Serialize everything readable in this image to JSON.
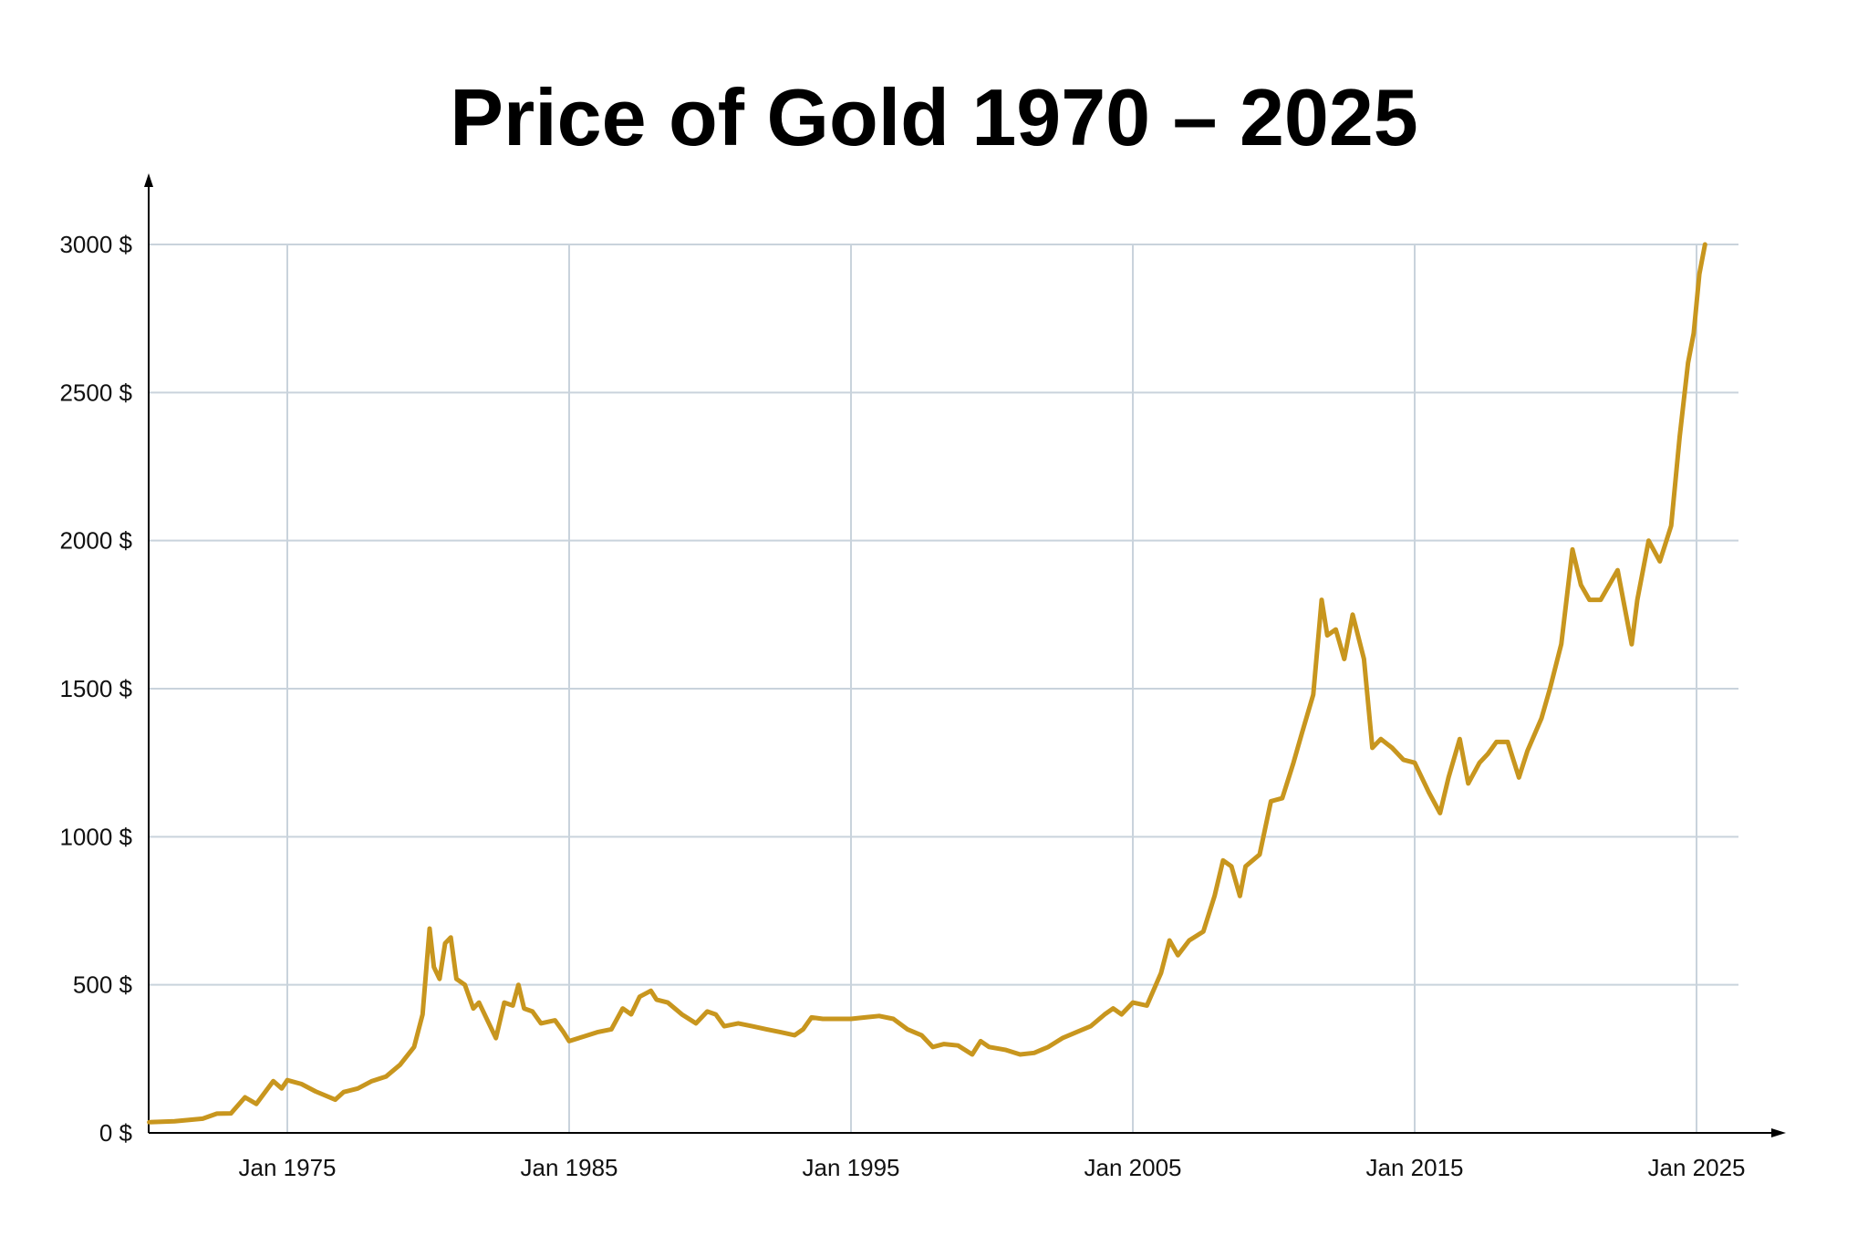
{
  "chart_data": {
    "type": "line",
    "title": "Price of Gold 1970 – 2025",
    "xlabel": "",
    "ylabel": "",
    "xlim": [
      1970.08,
      2027.5
    ],
    "ylim": [
      0,
      3200
    ],
    "grid": true,
    "line_color": "#C8961E",
    "grid_color": "#C9D3DC",
    "x_ticks": [
      {
        "value": 1975,
        "label": "Jan 1975"
      },
      {
        "value": 1985,
        "label": "Jan 1985"
      },
      {
        "value": 1995,
        "label": "Jan 1995"
      },
      {
        "value": 2005,
        "label": "Jan 2005"
      },
      {
        "value": 2015,
        "label": "Jan 2015"
      },
      {
        "value": 2025,
        "label": "Jan 2025"
      }
    ],
    "y_ticks": [
      {
        "value": 0,
        "label": "0 $"
      },
      {
        "value": 500,
        "label": "500 $"
      },
      {
        "value": 1000,
        "label": "1000 $"
      },
      {
        "value": 1500,
        "label": "1500 $"
      },
      {
        "value": 2000,
        "label": "2000 $"
      },
      {
        "value": 2500,
        "label": "2500 $"
      },
      {
        "value": 3000,
        "label": "3000 $"
      }
    ],
    "series": [
      {
        "x": [
          1970.1,
          1971,
          1972,
          1972.5,
          1973,
          1973.5,
          1973.9,
          1974.5,
          1974.8,
          1975,
          1975.5,
          1976,
          1976.7,
          1977,
          1977.5,
          1978,
          1978.5,
          1979,
          1979.5,
          1979.8,
          1980.05,
          1980.2,
          1980.4,
          1980.6,
          1980.8,
          1981,
          1981.3,
          1981.6,
          1981.8,
          1982.1,
          1982.4,
          1982.7,
          1983,
          1983.2,
          1983.4,
          1983.7,
          1984,
          1984.5,
          1984.8,
          1985,
          1985.5,
          1986,
          1986.5,
          1986.9,
          1987.2,
          1987.5,
          1987.9,
          1988.1,
          1988.5,
          1989,
          1989.5,
          1989.9,
          1990.2,
          1990.5,
          1991,
          1991.5,
          1992,
          1992.5,
          1993,
          1993.3,
          1993.6,
          1994,
          1994.5,
          1995,
          1995.5,
          1996,
          1996.5,
          1997,
          1997.5,
          1997.9,
          1998.3,
          1998.8,
          1999.3,
          1999.6,
          1999.9,
          2000.5,
          2001,
          2001.5,
          2002,
          2002.5,
          2003,
          2003.5,
          2004,
          2004.3,
          2004.6,
          2005,
          2005.5,
          2006,
          2006.3,
          2006.6,
          2007,
          2007.5,
          2007.9,
          2008.2,
          2008.5,
          2008.8,
          2009,
          2009.5,
          2009.9,
          2010.3,
          2010.7,
          2011,
          2011.4,
          2011.7,
          2011.9,
          2012.2,
          2012.5,
          2012.8,
          2013.2,
          2013.5,
          2013.8,
          2014.2,
          2014.6,
          2015,
          2015.5,
          2015.9,
          2016.2,
          2016.6,
          2016.9,
          2017.3,
          2017.6,
          2017.9,
          2018.3,
          2018.7,
          2019,
          2019.5,
          2019.8,
          2020.2,
          2020.6,
          2020.9,
          2021.2,
          2021.6,
          2022.2,
          2022.7,
          2022.9,
          2023.3,
          2023.7,
          2024.1,
          2024.4,
          2024.7,
          2024.9,
          2025.1,
          2025.3
        ],
        "y": [
          36,
          39,
          48,
          65,
          66,
          120,
          98,
          175,
          150,
          178,
          165,
          140,
          112,
          138,
          150,
          175,
          190,
          230,
          290,
          400,
          690,
          560,
          520,
          640,
          660,
          520,
          500,
          420,
          440,
          380,
          320,
          440,
          430,
          500,
          420,
          410,
          370,
          380,
          340,
          310,
          325,
          340,
          350,
          420,
          400,
          460,
          480,
          450,
          440,
          400,
          370,
          410,
          400,
          360,
          370,
          360,
          350,
          340,
          330,
          350,
          390,
          385,
          385,
          385,
          390,
          395,
          385,
          350,
          330,
          290,
          300,
          295,
          265,
          310,
          290,
          280,
          265,
          270,
          290,
          320,
          340,
          360,
          400,
          420,
          400,
          440,
          430,
          540,
          650,
          600,
          650,
          680,
          800,
          920,
          900,
          800,
          900,
          940,
          1120,
          1130,
          1250,
          1350,
          1480,
          1800,
          1680,
          1700,
          1600,
          1750,
          1600,
          1300,
          1330,
          1300,
          1260,
          1250,
          1150,
          1080,
          1200,
          1330,
          1180,
          1250,
          1280,
          1320,
          1320,
          1200,
          1290,
          1400,
          1500,
          1650,
          1970,
          1850,
          1800,
          1800,
          1900,
          1650,
          1800,
          2000,
          1930,
          2050,
          2350,
          2600,
          2700,
          2900,
          3000
        ]
      }
    ]
  }
}
